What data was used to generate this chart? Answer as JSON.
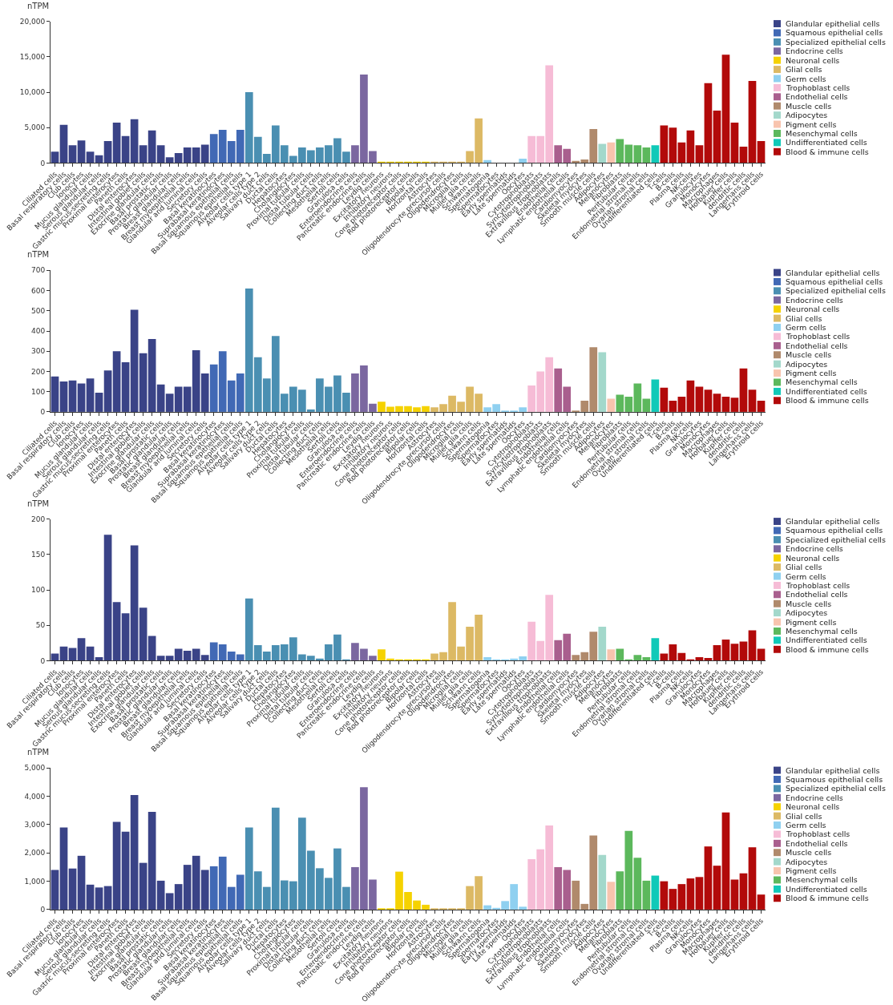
{
  "chart_data": [
    {
      "type": "bar",
      "ylabel": "nTPM",
      "legend": "top right",
      "ylim": [
        0,
        20000
      ],
      "yticks": [
        0,
        {
          "value": 5000,
          "label": "5,000"
        },
        {
          "value": 10000,
          "label": "10,000"
        },
        {
          "value": 15000,
          "label": "15,000"
        },
        {
          "value": 20000,
          "label": "20,000"
        }
      ],
      "categories": [
        "Ciliated cells",
        "Basal respiratory cells",
        "Club cells",
        "Ionocytes",
        "Mucus glandular cells",
        "Serous glandular cells",
        "Gastric mucus-secreting cells",
        "Proximal enterocytes",
        "Paneth cells",
        "Distal enterocytes",
        "Intestinal goblet cells",
        "Exocrine glandular cells",
        "Basal prostatic cells",
        "Prostatic glandular cells",
        "Breast glandular cells",
        "Breast myoepithelial cells",
        "Glandular and luminal cells",
        "Secretory cells",
        "Basal keratinocytes",
        "Suprabasal keratinocytes",
        "Basal squamous epithelial cells",
        "Squamous epithelial cells",
        "Alveolar cells type 1",
        "Alveolar cells type 2",
        "Salivary duct cells",
        "Ductal cells",
        "Hepatocytes",
        "Cholangiocytes",
        "Proximal tubular cells",
        "Distal tubular cells",
        "Collecting duct cells",
        "Mesothelial cells",
        "Sertoli cells",
        "Granulosa cells",
        "Enteroendocrine cells",
        "Pancreatic endocrine cells",
        "Leydig cells",
        "Excitatory neurons",
        "Inhibitory neurons",
        "Cone photoreceptor cells",
        "Rod photoreceptor cells",
        "Bipolar cells",
        "Horizontal cells",
        "Astrocytes",
        "Oligodendrocyte precursor cells",
        "Oligodendrocytes",
        "Microglial cells",
        "Muller glia cells",
        "Schwann cells",
        "Spermatogonia",
        "Spermatocytes",
        "Early spermatids",
        "Late spermatids",
        "Oocytes",
        "Cytotrophoblasts",
        "Syncytiotrophoblasts",
        "Extravillous trophoblasts",
        "Endothelial cells",
        "Lymphatic endothelial cells",
        "Cardiomyocytes",
        "Skeletal myocytes",
        "Smooth muscle cells",
        "Adipocytes",
        "Melanocytes",
        "Fibroblasts",
        "Peritubular cells",
        "Endometrial stromal cells",
        "Ovarian stromal cells",
        "Undifferentiated cells",
        "T-cells",
        "B-cells",
        "Plasma cells",
        "NK-cells",
        "Granulocytes",
        "Monocytes",
        "Macrophages",
        "Hofbauer cells",
        "Kupffer cells",
        "dendritic cells",
        "Langerhans cells",
        "Erythroid cells"
      ],
      "series": [
        {
          "name": "Glandular epithelial cells",
          "color": "#3a4387",
          "x": [
            "Ciliated cells",
            "Basal respiratory cells",
            "Club cells",
            "Ionocytes",
            "Mucus glandular cells",
            "Serous glandular cells",
            "Gastric mucus-secreting cells",
            "Proximal enterocytes",
            "Paneth cells",
            "Distal enterocytes",
            "Intestinal goblet cells",
            "Exocrine glandular cells",
            "Basal prostatic cells",
            "Prostatic glandular cells",
            "Breast glandular cells",
            "Breast myoepithelial cells",
            "Glandular and luminal cells",
            "Secretory cells"
          ],
          "values": [
            1600,
            5400,
            2500,
            3200,
            1600,
            1100,
            3100,
            5700,
            3800,
            6200,
            2500,
            4600,
            2500,
            800,
            1400,
            2200,
            2200,
            2600
          ]
        },
        {
          "name": "Squamous epithelial cells",
          "color": "#4169b5",
          "x": [
            "Basal keratinocytes",
            "Suprabasal keratinocytes",
            "Basal squamous epithelial cells",
            "Squamous epithelial cells"
          ],
          "values": [
            4100,
            4700,
            3100,
            4700
          ]
        },
        {
          "name": "Specialized epithelial cells",
          "color": "#4a8fb2",
          "x": [
            "Alveolar cells type 1",
            "Alveolar cells type 2",
            "Salivary duct cells",
            "Ductal cells",
            "Hepatocytes",
            "Cholangiocytes",
            "Proximal tubular cells",
            "Distal tubular cells",
            "Collecting duct cells",
            "Mesothelial cells",
            "Sertoli cells",
            "Granulosa cells"
          ],
          "values": [
            10000,
            3700,
            1300,
            5300,
            2500,
            1000,
            2200,
            1800,
            2200,
            2500,
            3500,
            1600
          ]
        },
        {
          "name": "Endocrine cells",
          "color": "#7b67a0",
          "x": [
            "Enteroendocrine cells",
            "Pancreatic endocrine cells",
            "Leydig cells"
          ],
          "values": [
            2500,
            12500,
            1700
          ]
        },
        {
          "name": "Neuronal cells",
          "color": "#f5d200",
          "x": [
            "Excitatory neurons",
            "Inhibitory neurons",
            "Cone photoreceptor cells",
            "Rod photoreceptor cells",
            "Bipolar cells",
            "Horizontal cells"
          ],
          "values": [
            100,
            100,
            200,
            100,
            200,
            200
          ]
        },
        {
          "name": "Glial cells",
          "color": "#dcb964",
          "x": [
            "Astrocytes",
            "Oligodendrocyte precursor cells",
            "Oligodendrocytes",
            "Microglial cells",
            "Muller glia cells",
            "Schwann cells"
          ],
          "values": [
            100,
            100,
            200,
            200,
            1700,
            6300
          ]
        },
        {
          "name": "Germ cells",
          "color": "#8fd0f0",
          "x": [
            "Spermatogonia",
            "Spermatocytes",
            "Early spermatids",
            "Late spermatids",
            "Oocytes"
          ],
          "values": [
            400,
            0,
            0,
            0,
            600
          ]
        },
        {
          "name": "Trophoblast cells",
          "color": "#f6bcd6",
          "x": [
            "Cytotrophoblasts",
            "Syncytiotrophoblasts",
            "Extravillous trophoblasts"
          ],
          "values": [
            3800,
            3800,
            13800
          ]
        },
        {
          "name": "Endothelial cells",
          "color": "#a95f8e",
          "x": [
            "Endothelial cells",
            "Lymphatic endothelial cells"
          ],
          "values": [
            2500,
            2000
          ]
        },
        {
          "name": "Muscle cells",
          "color": "#b08a6c",
          "x": [
            "Cardiomyocytes",
            "Skeletal myocytes",
            "Smooth muscle cells"
          ],
          "values": [
            300,
            500,
            4800
          ]
        },
        {
          "name": "Adipocytes",
          "color": "#a3d8cb",
          "x": [
            "Adipocytes"
          ],
          "values": [
            2700
          ]
        },
        {
          "name": "Pigment cells",
          "color": "#f8c4ae",
          "x": [
            "Melanocytes"
          ],
          "values": [
            2900
          ]
        },
        {
          "name": "Mesenchymal cells",
          "color": "#5cb85c",
          "x": [
            "Fibroblasts",
            "Peritubular cells",
            "Endometrial stromal cells",
            "Ovarian stromal cells"
          ],
          "values": [
            3400,
            2600,
            2500,
            2200
          ]
        },
        {
          "name": "Undifferentiated cells",
          "color": "#10c9b8",
          "x": [
            "Undifferentiated cells"
          ],
          "values": [
            2500
          ]
        },
        {
          "name": "Blood & immune cells",
          "color": "#b20a0a",
          "x": [
            "T-cells",
            "B-cells",
            "Plasma cells",
            "NK-cells",
            "Granulocytes",
            "Monocytes",
            "Macrophages",
            "Hofbauer cells",
            "Kupffer cells",
            "dendritic cells",
            "Langerhans cells",
            "Erythroid cells"
          ],
          "values": [
            5300,
            5000,
            2900,
            4600,
            2500,
            11300,
            7400,
            15300,
            5700,
            2300,
            11600,
            3100
          ]
        }
      ]
    },
    {
      "type": "bar",
      "ylabel": "nTPM",
      "legend": "top right",
      "ylim": [
        0,
        700
      ],
      "yticks": [
        0,
        100,
        200,
        300,
        400,
        500,
        600,
        700
      ],
      "categories": [
        "Ciliated cells",
        "Basal respiratory cells",
        "Club cells",
        "Ionocytes",
        "Mucus glandular cells",
        "Serous glandular cells",
        "Gastric mucus-secreting cells",
        "Proximal enterocytes",
        "Paneth cells",
        "Distal enterocytes",
        "Intestinal goblet cells",
        "Exocrine glandular cells",
        "Basal prostatic cells",
        "Prostatic glandular cells",
        "Breast glandular cells",
        "Breast myoepithelial cells",
        "Glandular and luminal cells",
        "Secretory cells",
        "Basal keratinocytes",
        "Suprabasal keratinocytes",
        "Basal squamous epithelial cells",
        "Squamous epithelial cells",
        "Alveolar cells type 1",
        "Alveolar cells type 2",
        "Salivary duct cells",
        "Ductal cells",
        "Hepatocytes",
        "Cholangiocytes",
        "Proximal tubular cells",
        "Distal tubular cells",
        "Collecting duct cells",
        "Mesothelial cells",
        "Sertoli cells",
        "Granulosa cells",
        "Enteroendocrine cells",
        "Pancreatic endocrine cells",
        "Leydig cells",
        "Excitatory neurons",
        "Inhibitory neurons",
        "Cone photoreceptor cells",
        "Rod photoreceptor cells",
        "Bipolar cells",
        "Horizontal cells",
        "Astrocytes",
        "Oligodendrocyte precursor cells",
        "Oligodendrocytes",
        "Microglial cells",
        "Muller glia cells",
        "Schwann cells",
        "Spermatogonia",
        "Spermatocytes",
        "Early spermatids",
        "Late spermatids",
        "Oocytes",
        "Cytotrophoblasts",
        "Syncytiotrophoblasts",
        "Extravillous trophoblasts",
        "Endothelial cells",
        "Lymphatic endothelial cells",
        "Cardiomyocytes",
        "Skeletal myocytes",
        "Smooth muscle cells",
        "Adipocytes",
        "Melanocytes",
        "Fibroblasts",
        "Peritubular cells",
        "Endometrial stromal cells",
        "Ovarian stromal cells",
        "Undifferentiated cells",
        "T-cells",
        "B-cells",
        "Plasma cells",
        "NK-cells",
        "Granulocytes",
        "Monocytes",
        "Macrophages",
        "Hofbauer cells",
        "Kupffer cells",
        "dendritic cells",
        "Langerhans cells",
        "Erythroid cells"
      ],
      "series": [
        {
          "name": "Glandular epithelial cells",
          "color": "#3a4387",
          "x": [
            "Ciliated cells",
            "Basal respiratory cells",
            "Club cells",
            "Ionocytes",
            "Mucus glandular cells",
            "Serous glandular cells",
            "Gastric mucus-secreting cells",
            "Proximal enterocytes",
            "Paneth cells",
            "Distal enterocytes",
            "Intestinal goblet cells",
            "Exocrine glandular cells",
            "Basal prostatic cells",
            "Prostatic glandular cells",
            "Breast glandular cells",
            "Breast myoepithelial cells",
            "Glandular and luminal cells",
            "Secretory cells"
          ],
          "values": [
            175,
            150,
            155,
            140,
            165,
            95,
            205,
            300,
            245,
            505,
            290,
            360,
            135,
            90,
            125,
            125,
            305,
            190
          ]
        },
        {
          "name": "Squamous epithelial cells",
          "color": "#4169b5",
          "x": [
            "Basal keratinocytes",
            "Suprabasal keratinocytes",
            "Basal squamous epithelial cells",
            "Squamous epithelial cells"
          ],
          "values": [
            235,
            300,
            155,
            190
          ]
        },
        {
          "name": "Specialized epithelial cells",
          "color": "#4a8fb2",
          "x": [
            "Alveolar cells type 1",
            "Alveolar cells type 2",
            "Salivary duct cells",
            "Ductal cells",
            "Hepatocytes",
            "Cholangiocytes",
            "Proximal tubular cells",
            "Distal tubular cells",
            "Collecting duct cells",
            "Mesothelial cells",
            "Sertoli cells",
            "Granulosa cells"
          ],
          "values": [
            610,
            270,
            165,
            375,
            90,
            125,
            110,
            12,
            165,
            125,
            180,
            95
          ]
        },
        {
          "name": "Endocrine cells",
          "color": "#7b67a0",
          "x": [
            "Enteroendocrine cells",
            "Pancreatic endocrine cells",
            "Leydig cells"
          ],
          "values": [
            190,
            230,
            40
          ]
        },
        {
          "name": "Neuronal cells",
          "color": "#f5d200",
          "x": [
            "Excitatory neurons",
            "Inhibitory neurons",
            "Cone photoreceptor cells",
            "Rod photoreceptor cells",
            "Bipolar cells",
            "Horizontal cells"
          ],
          "values": [
            50,
            25,
            28,
            28,
            22,
            28
          ]
        },
        {
          "name": "Glial cells",
          "color": "#dcb964",
          "x": [
            "Astrocytes",
            "Oligodendrocyte precursor cells",
            "Oligodendrocytes",
            "Microglial cells",
            "Muller glia cells",
            "Schwann cells"
          ],
          "values": [
            22,
            38,
            80,
            50,
            125,
            90
          ]
        },
        {
          "name": "Germ cells",
          "color": "#8fd0f0",
          "x": [
            "Spermatogonia",
            "Spermatocytes",
            "Early spermatids",
            "Late spermatids",
            "Oocytes"
          ],
          "values": [
            22,
            38,
            3,
            3,
            22
          ]
        },
        {
          "name": "Trophoblast cells",
          "color": "#f6bcd6",
          "x": [
            "Cytotrophoblasts",
            "Syncytiotrophoblasts",
            "Extravillous trophoblasts"
          ],
          "values": [
            130,
            200,
            270
          ]
        },
        {
          "name": "Endothelial cells",
          "color": "#a95f8e",
          "x": [
            "Endothelial cells",
            "Lymphatic endothelial cells"
          ],
          "values": [
            215,
            125
          ]
        },
        {
          "name": "Muscle cells",
          "color": "#b08a6c",
          "x": [
            "Cardiomyocytes",
            "Skeletal myocytes",
            "Smooth muscle cells"
          ],
          "values": [
            5,
            55,
            320
          ]
        },
        {
          "name": "Adipocytes",
          "color": "#a3d8cb",
          "x": [
            "Adipocytes"
          ],
          "values": [
            295
          ]
        },
        {
          "name": "Pigment cells",
          "color": "#f8c4ae",
          "x": [
            "Melanocytes"
          ],
          "values": [
            65
          ]
        },
        {
          "name": "Mesenchymal cells",
          "color": "#5cb85c",
          "x": [
            "Fibroblasts",
            "Peritubular cells",
            "Endometrial stromal cells",
            "Ovarian stromal cells"
          ],
          "values": [
            85,
            75,
            140,
            65
          ]
        },
        {
          "name": "Undifferentiated cells",
          "color": "#10c9b8",
          "x": [
            "Undifferentiated cells"
          ],
          "values": [
            160
          ]
        },
        {
          "name": "Blood & immune cells",
          "color": "#b20a0a",
          "x": [
            "T-cells",
            "B-cells",
            "Plasma cells",
            "NK-cells",
            "Granulocytes",
            "Monocytes",
            "Macrophages",
            "Hofbauer cells",
            "Kupffer cells",
            "dendritic cells",
            "Langerhans cells",
            "Erythroid cells"
          ],
          "values": [
            120,
            55,
            75,
            155,
            125,
            110,
            90,
            75,
            70,
            215,
            110,
            55
          ]
        }
      ]
    },
    {
      "type": "bar",
      "ylabel": "nTPM",
      "legend": "top right",
      "ylim": [
        0,
        200
      ],
      "yticks": [
        0,
        50,
        100,
        150,
        200
      ],
      "categories": [
        "Ciliated cells",
        "Basal respiratory cells",
        "Club cells",
        "Ionocytes",
        "Mucus glandular cells",
        "Serous glandular cells",
        "Gastric mucus-secreting cells",
        "Proximal enterocytes",
        "Paneth cells",
        "Distal enterocytes",
        "Intestinal goblet cells",
        "Exocrine glandular cells",
        "Basal prostatic cells",
        "Prostatic glandular cells",
        "Breast glandular cells",
        "Breast myoepithelial cells",
        "Glandular and luminal cells",
        "Secretory cells",
        "Basal keratinocytes",
        "Suprabasal keratinocytes",
        "Basal squamous epithelial cells",
        "Squamous epithelial cells",
        "Alveolar cells type 1",
        "Alveolar cells type 2",
        "Salivary duct cells",
        "Ductal cells",
        "Hepatocytes",
        "Cholangiocytes",
        "Proximal tubular cells",
        "Distal tubular cells",
        "Collecting duct cells",
        "Mesothelial cells",
        "Sertoli cells",
        "Granulosa cells",
        "Enteroendocrine cells",
        "Pancreatic endocrine cells",
        "Leydig cells",
        "Excitatory neurons",
        "Inhibitory neurons",
        "Cone photoreceptor cells",
        "Rod photoreceptor cells",
        "Bipolar cells",
        "Horizontal cells",
        "Astrocytes",
        "Oligodendrocyte precursor cells",
        "Oligodendrocytes",
        "Microglial cells",
        "Muller glia cells",
        "Schwann cells",
        "Spermatogonia",
        "Spermatocytes",
        "Early spermatids",
        "Late spermatids",
        "Oocytes",
        "Cytotrophoblasts",
        "Syncytiotrophoblasts",
        "Extravillous trophoblasts",
        "Endothelial cells",
        "Lymphatic endothelial cells",
        "Cardiomyocytes",
        "Skeletal myocytes",
        "Smooth muscle cells",
        "Adipocytes",
        "Melanocytes",
        "Fibroblasts",
        "Peritubular cells",
        "Endometrial stromal cells",
        "Ovarian stromal cells",
        "Undifferentiated cells",
        "T-cells",
        "B-cells",
        "Plasma cells",
        "NK-cells",
        "Granulocytes",
        "Monocytes",
        "Macrophages",
        "Hofbauer cells",
        "Kupffer cells",
        "dendritic cells",
        "Langerhans cells",
        "Erythroid cells"
      ],
      "series": [
        {
          "name": "Glandular epithelial cells",
          "color": "#3a4387",
          "x": [
            "Ciliated cells",
            "Basal respiratory cells",
            "Club cells",
            "Ionocytes",
            "Mucus glandular cells",
            "Serous glandular cells",
            "Gastric mucus-secreting cells",
            "Proximal enterocytes",
            "Paneth cells",
            "Distal enterocytes",
            "Intestinal goblet cells",
            "Exocrine glandular cells",
            "Basal prostatic cells",
            "Prostatic glandular cells",
            "Breast glandular cells",
            "Breast myoepithelial cells",
            "Glandular and luminal cells",
            "Secretory cells"
          ],
          "values": [
            10,
            20,
            18,
            32,
            20,
            5,
            178,
            83,
            67,
            163,
            75,
            35,
            7,
            7,
            17,
            14,
            17,
            8
          ]
        },
        {
          "name": "Squamous epithelial cells",
          "color": "#4169b5",
          "x": [
            "Basal keratinocytes",
            "Suprabasal keratinocytes",
            "Basal squamous epithelial cells",
            "Squamous epithelial cells"
          ],
          "values": [
            26,
            23,
            13,
            9
          ]
        },
        {
          "name": "Specialized epithelial cells",
          "color": "#4a8fb2",
          "x": [
            "Alveolar cells type 1",
            "Alveolar cells type 2",
            "Salivary duct cells",
            "Ductal cells",
            "Hepatocytes",
            "Cholangiocytes",
            "Proximal tubular cells",
            "Distal tubular cells",
            "Collecting duct cells",
            "Mesothelial cells",
            "Sertoli cells",
            "Granulosa cells"
          ],
          "values": [
            88,
            22,
            13,
            22,
            23,
            33,
            9,
            7,
            3,
            23,
            37,
            1
          ]
        },
        {
          "name": "Endocrine cells",
          "color": "#7b67a0",
          "x": [
            "Enteroendocrine cells",
            "Pancreatic endocrine cells",
            "Leydig cells"
          ],
          "values": [
            25,
            17,
            7
          ]
        },
        {
          "name": "Neuronal cells",
          "color": "#f5d200",
          "x": [
            "Excitatory neurons",
            "Inhibitory neurons",
            "Cone photoreceptor cells",
            "Rod photoreceptor cells",
            "Bipolar cells",
            "Horizontal cells"
          ],
          "values": [
            16,
            3,
            1,
            1,
            1,
            1
          ]
        },
        {
          "name": "Glial cells",
          "color": "#dcb964",
          "x": [
            "Astrocytes",
            "Oligodendrocyte precursor cells",
            "Oligodendrocytes",
            "Microglial cells",
            "Muller glia cells",
            "Schwann cells"
          ],
          "values": [
            10,
            12,
            83,
            20,
            48,
            65
          ]
        },
        {
          "name": "Germ cells",
          "color": "#8fd0f0",
          "x": [
            "Spermatogonia",
            "Spermatocytes",
            "Early spermatids",
            "Late spermatids",
            "Oocytes"
          ],
          "values": [
            5,
            1,
            1,
            3,
            6
          ]
        },
        {
          "name": "Trophoblast cells",
          "color": "#f6bcd6",
          "x": [
            "Cytotrophoblasts",
            "Syncytiotrophoblasts",
            "Extravillous trophoblasts"
          ],
          "values": [
            55,
            28,
            93
          ]
        },
        {
          "name": "Endothelial cells",
          "color": "#a95f8e",
          "x": [
            "Endothelial cells",
            "Lymphatic endothelial cells"
          ],
          "values": [
            29,
            38
          ]
        },
        {
          "name": "Muscle cells",
          "color": "#b08a6c",
          "x": [
            "Cardiomyocytes",
            "Skeletal myocytes",
            "Smooth muscle cells"
          ],
          "values": [
            8,
            12,
            41
          ]
        },
        {
          "name": "Adipocytes",
          "color": "#a3d8cb",
          "x": [
            "Adipocytes"
          ],
          "values": [
            48
          ]
        },
        {
          "name": "Pigment cells",
          "color": "#f8c4ae",
          "x": [
            "Melanocytes"
          ],
          "values": [
            16
          ]
        },
        {
          "name": "Mesenchymal cells",
          "color": "#5cb85c",
          "x": [
            "Fibroblasts",
            "Peritubular cells",
            "Endometrial stromal cells",
            "Ovarian stromal cells"
          ],
          "values": [
            17,
            2,
            8,
            5
          ]
        },
        {
          "name": "Undifferentiated cells",
          "color": "#10c9b8",
          "x": [
            "Undifferentiated cells"
          ],
          "values": [
            32
          ]
        },
        {
          "name": "Blood & immune cells",
          "color": "#b20a0a",
          "x": [
            "T-cells",
            "B-cells",
            "Plasma cells",
            "NK-cells",
            "Granulocytes",
            "Monocytes",
            "Macrophages",
            "Hofbauer cells",
            "Kupffer cells",
            "dendritic cells",
            "Langerhans cells",
            "Erythroid cells"
          ],
          "values": [
            10,
            23,
            11,
            2,
            5,
            4,
            22,
            30,
            24,
            27,
            43,
            17
          ]
        }
      ]
    },
    {
      "type": "bar",
      "ylabel": "nTPM",
      "legend": "top right",
      "ylim": [
        0,
        5000
      ],
      "yticks": [
        0,
        {
          "value": 1000,
          "label": "1,000"
        },
        {
          "value": 2000,
          "label": "2,000"
        },
        {
          "value": 3000,
          "label": "3,000"
        },
        {
          "value": 4000,
          "label": "4,000"
        },
        {
          "value": 5000,
          "label": "5,000"
        }
      ],
      "categories": [
        "Ciliated cells",
        "Basal respiratory cells",
        "Club cells",
        "Ionocytes",
        "Mucus glandular cells",
        "Serous glandular cells",
        "Gastric mucus-secreting cells",
        "Proximal enterocytes",
        "Paneth cells",
        "Distal enterocytes",
        "Intestinal goblet cells",
        "Exocrine glandular cells",
        "Basal prostatic cells",
        "Prostatic glandular cells",
        "Breast glandular cells",
        "Breast myoepithelial cells",
        "Glandular and luminal cells",
        "Secretory cells",
        "Basal keratinocytes",
        "Suprabasal keratinocytes",
        "Basal squamous epithelial cells",
        "Squamous epithelial cells",
        "Alveolar cells type 1",
        "Alveolar cells type 2",
        "Salivary duct cells",
        "Ductal cells",
        "Hepatocytes",
        "Cholangiocytes",
        "Proximal tubular cells",
        "Distal tubular cells",
        "Collecting duct cells",
        "Mesothelial cells",
        "Sertoli cells",
        "Granulosa cells",
        "Enteroendocrine cells",
        "Pancreatic endocrine cells",
        "Leydig cells",
        "Excitatory neurons",
        "Inhibitory neurons",
        "Cone photoreceptor cells",
        "Rod photoreceptor cells",
        "Bipolar cells",
        "Horizontal cells",
        "Astrocytes",
        "Oligodendrocyte precursor cells",
        "Oligodendrocytes",
        "Microglial cells",
        "Muller glia cells",
        "Schwann cells",
        "Spermatogonia",
        "Spermatocytes",
        "Early spermatids",
        "Late spermatids",
        "Oocytes",
        "Cytotrophoblasts",
        "Syncytiotrophoblasts",
        "Extravillous trophoblasts",
        "Endothelial cells",
        "Lymphatic endothelial cells",
        "Cardiomyocytes",
        "Skeletal myocytes",
        "Smooth muscle cells",
        "Adipocytes",
        "Melanocytes",
        "Fibroblasts",
        "Peritubular cells",
        "Endometrial stromal cells",
        "Ovarian stromal cells",
        "Undifferentiated cells",
        "T-cells",
        "B-cells",
        "Plasma cells",
        "NK-cells",
        "Granulocytes",
        "Monocytes",
        "Macrophages",
        "Hofbauer cells",
        "Kupffer cells",
        "dendritic cells",
        "Langerhans cells",
        "Erythroid cells"
      ],
      "series": [
        {
          "name": "Glandular epithelial cells",
          "color": "#3a4387",
          "x": [
            "Ciliated cells",
            "Basal respiratory cells",
            "Club cells",
            "Ionocytes",
            "Mucus glandular cells",
            "Serous glandular cells",
            "Gastric mucus-secreting cells",
            "Proximal enterocytes",
            "Paneth cells",
            "Distal enterocytes",
            "Intestinal goblet cells",
            "Exocrine glandular cells",
            "Basal prostatic cells",
            "Prostatic glandular cells",
            "Breast glandular cells",
            "Breast myoepithelial cells",
            "Glandular and luminal cells",
            "Secretory cells"
          ],
          "values": [
            1400,
            2900,
            1450,
            1900,
            880,
            780,
            830,
            3100,
            2750,
            4050,
            1650,
            3450,
            1020,
            580,
            900,
            1580,
            1900,
            1400
          ]
        },
        {
          "name": "Squamous epithelial cells",
          "color": "#4169b5",
          "x": [
            "Basal keratinocytes",
            "Suprabasal keratinocytes",
            "Basal squamous epithelial cells",
            "Squamous epithelial cells"
          ],
          "values": [
            1530,
            1870,
            800,
            1230
          ]
        },
        {
          "name": "Specialized epithelial cells",
          "color": "#4a8fb2",
          "x": [
            "Alveolar cells type 1",
            "Alveolar cells type 2",
            "Salivary duct cells",
            "Ductal cells",
            "Hepatocytes",
            "Cholangiocytes",
            "Proximal tubular cells",
            "Distal tubular cells",
            "Collecting duct cells",
            "Mesothelial cells",
            "Sertoli cells",
            "Granulosa cells"
          ],
          "values": [
            2900,
            1350,
            800,
            3600,
            1030,
            1000,
            3250,
            2080,
            1460,
            1120,
            2160,
            800
          ]
        },
        {
          "name": "Endocrine cells",
          "color": "#7b67a0",
          "x": [
            "Enteroendocrine cells",
            "Pancreatic endocrine cells",
            "Leydig cells"
          ],
          "values": [
            1500,
            4320,
            1060
          ]
        },
        {
          "name": "Neuronal cells",
          "color": "#f5d200",
          "x": [
            "Excitatory neurons",
            "Inhibitory neurons",
            "Cone photoreceptor cells",
            "Rod photoreceptor cells",
            "Bipolar cells",
            "Horizontal cells"
          ],
          "values": [
            30,
            30,
            1340,
            620,
            320,
            170
          ]
        },
        {
          "name": "Glial cells",
          "color": "#dcb964",
          "x": [
            "Astrocytes",
            "Oligodendrocyte precursor cells",
            "Oligodendrocytes",
            "Microglial cells",
            "Muller glia cells",
            "Schwann cells"
          ],
          "values": [
            20,
            20,
            20,
            20,
            830,
            1180
          ]
        },
        {
          "name": "Germ cells",
          "color": "#8fd0f0",
          "x": [
            "Spermatogonia",
            "Spermatocytes",
            "Early spermatids",
            "Late spermatids",
            "Oocytes"
          ],
          "values": [
            150,
            60,
            300,
            900,
            100
          ]
        },
        {
          "name": "Trophoblast cells",
          "color": "#f6bcd6",
          "x": [
            "Cytotrophoblasts",
            "Syncytiotrophoblasts",
            "Extravillous trophoblasts"
          ],
          "values": [
            1780,
            2130,
            2970
          ]
        },
        {
          "name": "Endothelial cells",
          "color": "#a95f8e",
          "x": [
            "Endothelial cells",
            "Lymphatic endothelial cells"
          ],
          "values": [
            1500,
            1400
          ]
        },
        {
          "name": "Muscle cells",
          "color": "#b08a6c",
          "x": [
            "Cardiomyocytes",
            "Skeletal myocytes",
            "Smooth muscle cells"
          ],
          "values": [
            1020,
            200,
            2620
          ]
        },
        {
          "name": "Adipocytes",
          "color": "#a3d8cb",
          "x": [
            "Adipocytes"
          ],
          "values": [
            1930
          ]
        },
        {
          "name": "Pigment cells",
          "color": "#f8c4ae",
          "x": [
            "Melanocytes"
          ],
          "values": [
            980
          ]
        },
        {
          "name": "Mesenchymal cells",
          "color": "#5cb85c",
          "x": [
            "Fibroblasts",
            "Peritubular cells",
            "Endometrial stromal cells",
            "Ovarian stromal cells"
          ],
          "values": [
            1350,
            2780,
            1830,
            1020
          ]
        },
        {
          "name": "Undifferentiated cells",
          "color": "#10c9b8",
          "x": [
            "Undifferentiated cells"
          ],
          "values": [
            1200
          ]
        },
        {
          "name": "Blood & immune cells",
          "color": "#b20a0a",
          "x": [
            "T-cells",
            "B-cells",
            "Plasma cells",
            "NK-cells",
            "Granulocytes",
            "Monocytes",
            "Macrophages",
            "Hofbauer cells",
            "Kupffer cells",
            "dendritic cells",
            "Langerhans cells",
            "Erythroid cells"
          ],
          "values": [
            1000,
            730,
            900,
            1100,
            1150,
            2230,
            1550,
            3430,
            1060,
            1280,
            2200,
            530
          ]
        }
      ]
    }
  ]
}
